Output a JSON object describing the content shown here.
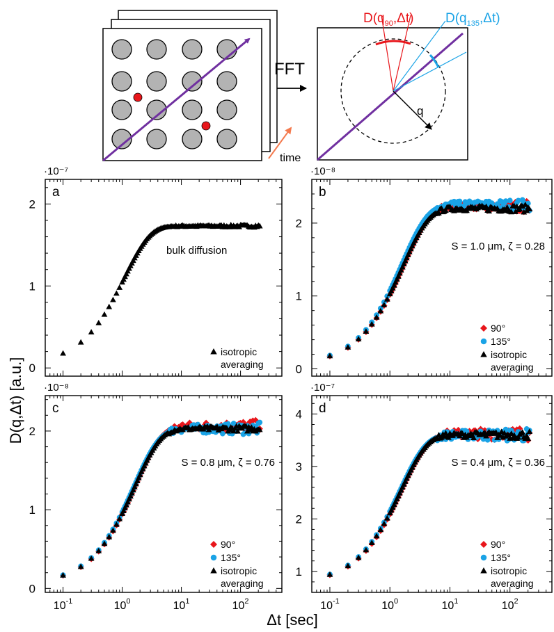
{
  "schematic": {
    "fft_label": "FFT",
    "time_label": "time",
    "d90_label": "D(q90,Δt)",
    "d135_label": "D(q135,Δt)",
    "q_label": "q",
    "colors": {
      "purple": "#7030a0",
      "red": "#e8161b",
      "blue": "#1aa3e6",
      "orange": "#f47a4e",
      "gray": "#b3b3b3"
    }
  },
  "axes": {
    "ylabel": "D(q,Δt) [a.u.]",
    "xlabel": "Δt [sec]"
  },
  "chart_data": [
    {
      "panel": "a",
      "type": "scatter",
      "xscale": "log",
      "xlim": [
        0.05,
        500
      ],
      "ylim": [
        -0.1,
        2.3
      ],
      "yticks": [
        0,
        1,
        2
      ],
      "exponent": "·10⁻⁷",
      "annotation": "bulk diffusion",
      "legend": "bottom-right",
      "series": [
        {
          "name": "isotropic averaging",
          "marker": "triangle",
          "color": "#000000",
          "plateau": 1.73,
          "tau": 1.1,
          "offset": 0.03,
          "noise": 0.006
        }
      ]
    },
    {
      "panel": "b",
      "type": "scatter",
      "xscale": "log",
      "xlim": [
        0.05,
        500
      ],
      "ylim": [
        -0.1,
        2.6
      ],
      "yticks": [
        0,
        1,
        2
      ],
      "exponent": "·10⁻⁸",
      "annotation": "S = 1.0 μm, ζ = 0.28",
      "legend": "bottom-right",
      "series": [
        {
          "name": "90°",
          "marker": "diamond",
          "color": "#e8161b",
          "plateau": 2.23,
          "tau": 1.7,
          "offset": 0.05,
          "noise": 0.03
        },
        {
          "name": "135°",
          "marker": "circle",
          "color": "#1aa3e6",
          "plateau": 2.25,
          "tau": 1.6,
          "offset": 0.05,
          "noise": 0.03
        },
        {
          "name": "isotropic averaging",
          "marker": "triangle",
          "color": "#000000",
          "plateau": 2.2,
          "tau": 1.65,
          "offset": 0.05,
          "noise": 0.02
        }
      ]
    },
    {
      "panel": "c",
      "type": "scatter",
      "xscale": "log",
      "xlim": [
        0.05,
        500
      ],
      "ylim": [
        -0.05,
        2.45
      ],
      "yticks": [
        0,
        1,
        2
      ],
      "exponent": "·10⁻⁸",
      "annotation": "S = 0.8 μm, ζ = 0.76",
      "legend": "bottom-right",
      "series": [
        {
          "name": "90°",
          "marker": "diamond",
          "color": "#e8161b",
          "plateau": 2.06,
          "tau": 1.7,
          "offset": 0.05,
          "noise": 0.03
        },
        {
          "name": "135°",
          "marker": "circle",
          "color": "#1aa3e6",
          "plateau": 2.03,
          "tau": 1.6,
          "offset": 0.05,
          "noise": 0.03
        },
        {
          "name": "isotropic averaging",
          "marker": "triangle",
          "color": "#000000",
          "plateau": 2.03,
          "tau": 1.65,
          "offset": 0.05,
          "noise": 0.015
        }
      ]
    },
    {
      "panel": "d",
      "type": "scatter",
      "xscale": "log",
      "xlim": [
        0.05,
        500
      ],
      "ylim": [
        0.6,
        4.35
      ],
      "yticks": [
        1,
        2,
        3,
        4
      ],
      "exponent": "·10⁻⁷",
      "annotation": "S = 0.4 μm, ζ = 0.36",
      "legend": "bottom-right",
      "series": [
        {
          "name": "90°",
          "marker": "diamond",
          "color": "#e8161b",
          "plateau": 3.62,
          "tau": 1.6,
          "offset": 0.76,
          "noise": 0.05
        },
        {
          "name": "135°",
          "marker": "circle",
          "color": "#1aa3e6",
          "plateau": 3.6,
          "tau": 1.5,
          "offset": 0.76,
          "noise": 0.05
        },
        {
          "name": "isotropic averaging",
          "marker": "triangle",
          "color": "#000000",
          "plateau": 3.6,
          "tau": 1.55,
          "offset": 0.76,
          "noise": 0.03
        }
      ]
    }
  ]
}
